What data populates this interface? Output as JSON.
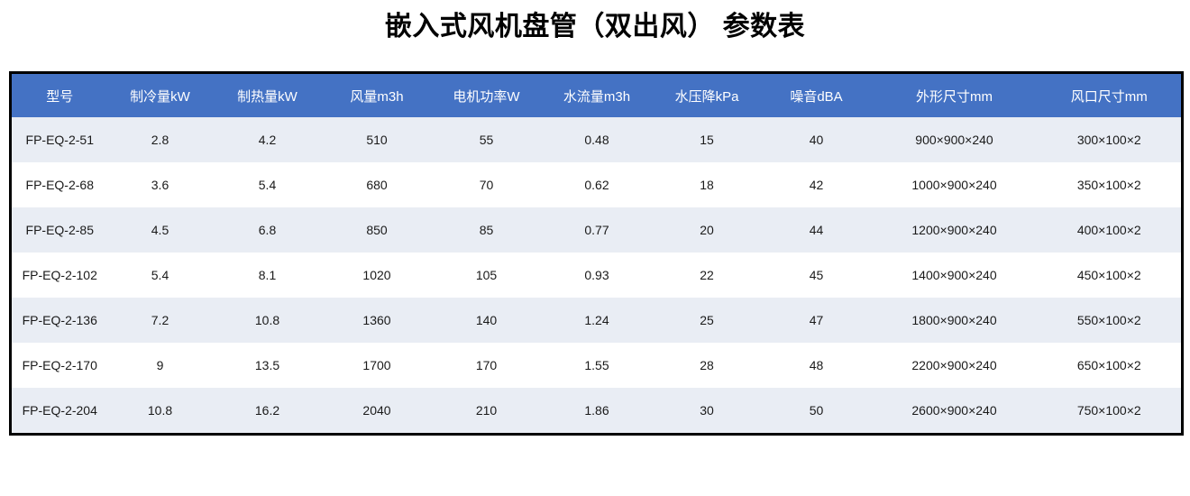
{
  "title": "嵌入式风机盘管（双出风） 参数表",
  "chart_data": {
    "type": "table",
    "columns": [
      "型号",
      "制冷量kW",
      "制热量kW",
      "风量m3h",
      "电机功率W",
      "水流量m3h",
      "水压降kPa",
      "噪音dBA",
      "外形尺寸mm",
      "风口尺寸mm"
    ],
    "rows": [
      [
        "FP-EQ-2-51",
        "2.8",
        "4.2",
        "510",
        "55",
        "0.48",
        "15",
        "40",
        "900×900×240",
        "300×100×2"
      ],
      [
        "FP-EQ-2-68",
        "3.6",
        "5.4",
        "680",
        "70",
        "0.62",
        "18",
        "42",
        "1000×900×240",
        "350×100×2"
      ],
      [
        "FP-EQ-2-85",
        "4.5",
        "6.8",
        "850",
        "85",
        "0.77",
        "20",
        "44",
        "1200×900×240",
        "400×100×2"
      ],
      [
        "FP-EQ-2-102",
        "5.4",
        "8.1",
        "1020",
        "105",
        "0.93",
        "22",
        "45",
        "1400×900×240",
        "450×100×2"
      ],
      [
        "FP-EQ-2-136",
        "7.2",
        "10.8",
        "1360",
        "140",
        "1.24",
        "25",
        "47",
        "1800×900×240",
        "550×100×2"
      ],
      [
        "FP-EQ-2-170",
        "9",
        "13.5",
        "1700",
        "170",
        "1.55",
        "28",
        "48",
        "2200×900×240",
        "650×100×2"
      ],
      [
        "FP-EQ-2-204",
        "10.8",
        "16.2",
        "2040",
        "210",
        "1.86",
        "30",
        "50",
        "2600×900×240",
        "750×100×2"
      ]
    ],
    "layout": {
      "striped": true,
      "stripe_pattern": "odd-rows-shaded",
      "outer_border": true
    }
  },
  "colors": {
    "header_bg": "#4472C4",
    "header_text": "#FFFFFF",
    "stripe_bg": "#E9EDF4",
    "row_bg": "#FFFFFF",
    "border": "#000000",
    "body_text": "#1A1A1A",
    "title_text": "#000000"
  }
}
